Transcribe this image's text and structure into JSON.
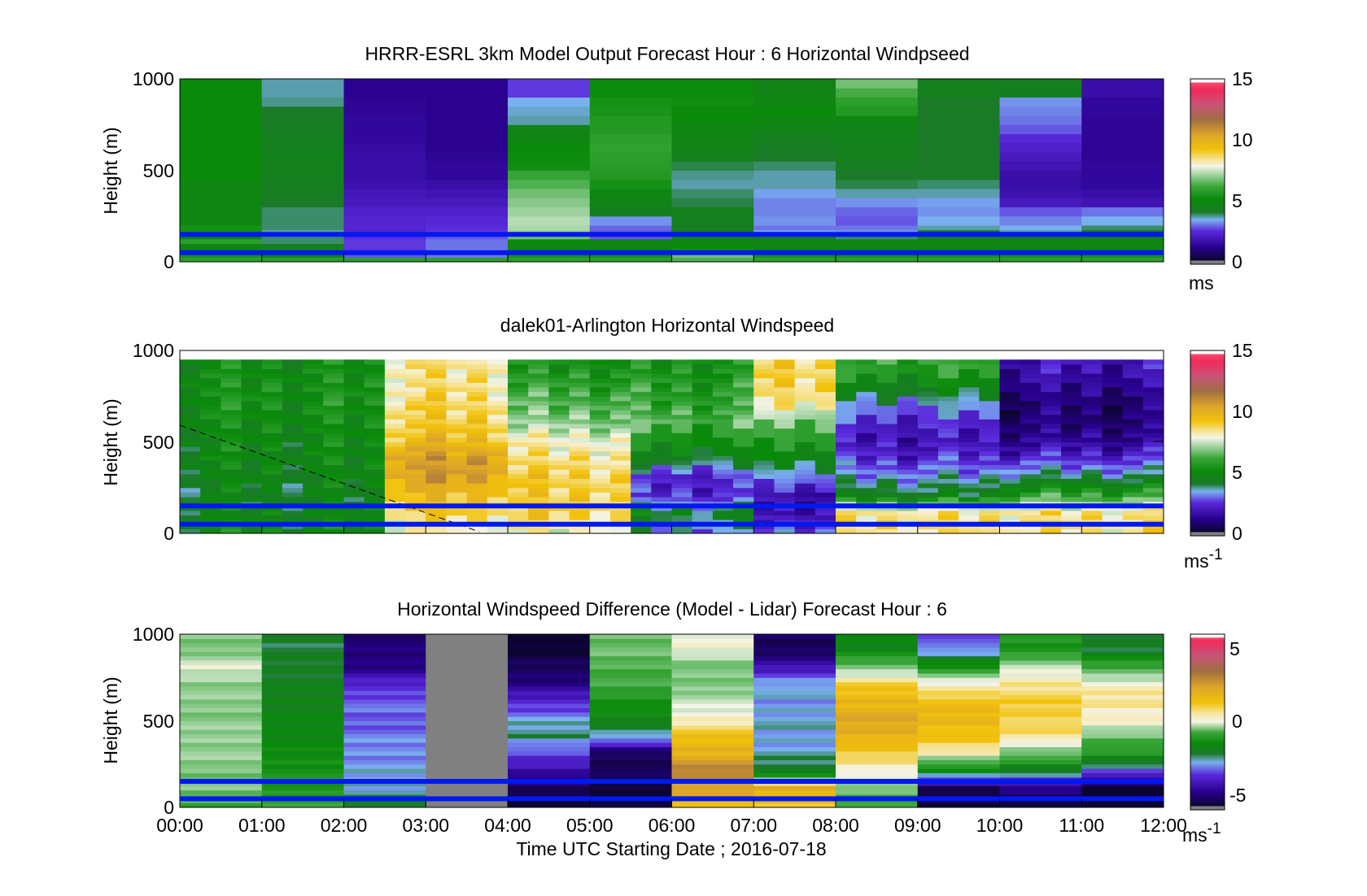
{
  "chart_data": [
    {
      "type": "heatmap",
      "title": "HRRR-ESRL 3km Model Output   Forecast Hour : 6 Horizontal Windpseed",
      "ylabel": "Height (m)",
      "ylim": [
        0,
        1000
      ],
      "yticks": [
        "0",
        "500",
        "1000"
      ],
      "x_range": [
        "00:00",
        "12:00"
      ],
      "grid": false,
      "colorbar": {
        "ticks": [
          "0",
          "5",
          "10",
          "15"
        ],
        "range": [
          0,
          15
        ],
        "unit": "ms"
      },
      "blue_lines_m": [
        50,
        150
      ],
      "heights_m": [
        0,
        25,
        50,
        75,
        100,
        125,
        150,
        175,
        200,
        250,
        300,
        350,
        400,
        450,
        500,
        550,
        600,
        650,
        700,
        750,
        800,
        850,
        900,
        950
      ],
      "columns": [
        {
          "hour": 0,
          "speeds": [
            6,
            5.5,
            5,
            5,
            6,
            5,
            5.5,
            5.5,
            5,
            5,
            5,
            5,
            5,
            5.2,
            5.2,
            5.2,
            5.2,
            5.2,
            5.2,
            5.2,
            5.2,
            5.2,
            5.2,
            5.2
          ]
        },
        {
          "hour": 1,
          "speeds": [
            6,
            5,
            4.5,
            4.5,
            4,
            4,
            3.8,
            4,
            4,
            4,
            4.2,
            4.4,
            4.5,
            4.6,
            4.6,
            4.7,
            4.5,
            4.6,
            4.4,
            4.3,
            4.2,
            3.9,
            3.8,
            3.8
          ]
        },
        {
          "hour": 2,
          "speeds": [
            6,
            3,
            2.8,
            2.8,
            2.8,
            2.7,
            2.5,
            2.5,
            2.5,
            2.4,
            2.2,
            2.1,
            1.9,
            1.8,
            1.8,
            1.8,
            1.7,
            1.6,
            1.6,
            1.6,
            1.5,
            1.5,
            1.4,
            1.4
          ]
        },
        {
          "hour": 3,
          "speeds": [
            6,
            3.2,
            3.2,
            3.2,
            3.2,
            3,
            2.8,
            2.7,
            2.6,
            2.4,
            2.2,
            2.0,
            1.8,
            1.6,
            1.6,
            1.5,
            1.4,
            1.4,
            1.4,
            1.4,
            1.4,
            1.4,
            1.4,
            1.4
          ]
        },
        {
          "hour": 4,
          "speeds": [
            6,
            5.5,
            5,
            5,
            5.2,
            6.8,
            7.2,
            7.3,
            7.4,
            7.2,
            7.0,
            6.8,
            6.5,
            6.2,
            5.4,
            5.3,
            5.2,
            5.0,
            4.8,
            3.8,
            3.7,
            3.6,
            2.8,
            2.8
          ]
        },
        {
          "hour": 5,
          "speeds": [
            6,
            5.5,
            5,
            5,
            5,
            3,
            3,
            3.1,
            3.4,
            4.5,
            4.8,
            5.0,
            5.5,
            5.8,
            5.9,
            6.0,
            6.1,
            6.0,
            5.8,
            5.8,
            5.6,
            5.5,
            5.3,
            5.3
          ]
        },
        {
          "hour": 6,
          "speeds": [
            6.5,
            6.8,
            5.5,
            5.2,
            5.0,
            4.8,
            4.6,
            4.3,
            4.5,
            4.6,
            4.1,
            4.0,
            3.8,
            3.9,
            4.1,
            4.6,
            4.8,
            4.8,
            5.0,
            5.2,
            5.2,
            5.4,
            5.3,
            5.3
          ]
        },
        {
          "hour": 7,
          "speeds": [
            6,
            5.5,
            5,
            5,
            5,
            4.2,
            3.5,
            3.2,
            3.4,
            3.3,
            3.3,
            3.5,
            3.8,
            3.8,
            4.0,
            4.2,
            4.3,
            4.5,
            4.8,
            5.0,
            5.2,
            5.0,
            4.8,
            4.8
          ]
        },
        {
          "hour": 8,
          "speeds": [
            6,
            5.5,
            5,
            5,
            5,
            4,
            3.4,
            3.2,
            3.0,
            3.1,
            3.4,
            3.8,
            4.1,
            4.2,
            4.4,
            4.6,
            4.6,
            4.7,
            4.8,
            5.0,
            5.8,
            6.0,
            6.4,
            6.8
          ]
        },
        {
          "hour": 9,
          "speeds": [
            6,
            5.5,
            5,
            5,
            5,
            4.5,
            4.2,
            3.8,
            3.6,
            3.4,
            3.5,
            3.8,
            4.0,
            4.2,
            4.2,
            4.2,
            4.2,
            4.2,
            4.2,
            4.2,
            4.2,
            4.2,
            4.6,
            4.6
          ]
        },
        {
          "hour": 10,
          "speeds": [
            6,
            5.5,
            5,
            5,
            5,
            4.4,
            3.8,
            3.6,
            3.3,
            3.0,
            2.2,
            1.9,
            1.8,
            1.8,
            2.0,
            2.2,
            2.4,
            2.6,
            3.0,
            3.2,
            3.3,
            3.4,
            4.5,
            4.5
          ]
        },
        {
          "hour": 11,
          "speeds": [
            6,
            5.5,
            5,
            5,
            5,
            4.6,
            4.2,
            4.0,
            3.6,
            3.2,
            2.0,
            1.8,
            1.6,
            1.6,
            1.6,
            1.5,
            1.5,
            1.5,
            1.5,
            1.5,
            1.6,
            1.6,
            1.8,
            1.8
          ]
        }
      ]
    },
    {
      "type": "heatmap",
      "title": "dalek01-Arlington  Horizontal Windspeed",
      "ylabel": "Height (m)",
      "ylim": [
        0,
        1000
      ],
      "yticks": [
        "0",
        "500",
        "1000"
      ],
      "x_range": [
        "00:00",
        "12:00"
      ],
      "grid": false,
      "colorbar": {
        "ticks": [
          "0",
          "5",
          "10",
          "15"
        ],
        "range": [
          0,
          15
        ],
        "unit": "ms",
        "unit_sup": "-1"
      },
      "blue_lines_m": [
        50,
        150
      ],
      "time_hours": [
        0,
        0.25,
        0.5,
        0.75,
        1,
        1.25,
        1.5,
        1.75,
        2,
        2.25,
        2.5,
        2.75,
        3,
        3.25,
        3.5,
        3.75,
        4,
        4.25,
        4.5,
        4.75,
        5,
        5.25,
        5.5,
        5.75,
        6,
        6.25,
        6.5,
        6.75,
        7,
        7.25,
        7.5,
        7.75,
        8,
        8.25,
        8.5,
        8.75,
        9,
        9.25,
        9.5,
        9.75,
        10,
        10.25,
        10.5,
        10.75,
        11,
        11.25,
        11.5,
        11.75
      ],
      "profiles": {
        "heights_m": [
          0,
          100,
          200,
          300,
          400,
          500,
          600,
          700,
          800,
          900
        ],
        "speeds_by_time_block": [
          {
            "hours": "0-2.5",
            "speeds": [
              5,
              4.8,
              4.6,
              4.8,
              5.0,
              5.0,
              5.2,
              5.4,
              5.4,
              5.2
            ]
          },
          {
            "hours": "2.5-4",
            "speeds": [
              8,
              9,
              9.5,
              10.5,
              10.5,
              9.5,
              9.0,
              8.8,
              8.5,
              8.5
            ]
          },
          {
            "hours": "4-5.5",
            "speeds": [
              8,
              9,
              9,
              9,
              8.5,
              8,
              7,
              6.5,
              6.0,
              5.5
            ]
          },
          {
            "hours": "5.5-7",
            "speeds": [
              3.5,
              4.5,
              2.5,
              2.5,
              4.5,
              5.5,
              6.5,
              6.0,
              5.8,
              5.5
            ]
          },
          {
            "hours": "7-8",
            "speeds": [
              3,
              2,
              2,
              3.5,
              5,
              6,
              7,
              8.5,
              9,
              9
            ]
          },
          {
            "hours": "8-10",
            "speeds": [
              8.5,
              8.5,
              4.5,
              3.5,
              2.5,
              2.0,
              2.5,
              3.5,
              5.0,
              6.0
            ]
          },
          {
            "hours": "10-12",
            "speeds": [
              8.5,
              8.5,
              6.0,
              4.0,
              2.5,
              1.5,
              1.0,
              1.0,
              1.5,
              2.0
            ]
          }
        ]
      }
    },
    {
      "type": "heatmap",
      "title": "Horizontal Windspeed Difference (Model - Lidar) Forecast Hour : 6",
      "xlabel": "Time UTC  Starting Date ; 2016-07-18",
      "ylabel": "Height (m)",
      "ylim": [
        0,
        1000
      ],
      "yticks": [
        "0",
        "500",
        "1000"
      ],
      "xticks": [
        "00:00",
        "01:00",
        "02:00",
        "03:00",
        "04:00",
        "05:00",
        "06:00",
        "07:00",
        "08:00",
        "09:00",
        "10:00",
        "11:00",
        "12:00"
      ],
      "grid": false,
      "colorbar": {
        "ticks": [
          "-5",
          "0",
          "5"
        ],
        "range": [
          -6,
          6
        ],
        "unit": "ms",
        "unit_sup": "-1"
      },
      "blue_lines_m": [
        50,
        150
      ],
      "heights_m": [
        0,
        100,
        200,
        300,
        400,
        500,
        600,
        700,
        800,
        900
      ],
      "columns": [
        {
          "hour": 0,
          "diffs": [
            -1,
            -0.5,
            -0.5,
            -0.3,
            -0.3,
            -0.4,
            -0.4,
            -0.3,
            0.2,
            -0.5
          ]
        },
        {
          "hour": 1,
          "diffs": [
            -1,
            -1.5,
            -1.5,
            -1.8,
            -2.0,
            -2.1,
            -2.2,
            -2.4,
            -2.5,
            -2.6
          ]
        },
        {
          "hour": 2,
          "diffs": [
            -2.5,
            -3.0,
            -3.2,
            -3.3,
            -3.4,
            -3.6,
            -3.5,
            -4.0,
            -5.0,
            -5.2
          ]
        },
        {
          "hour": 4,
          "diffs": [
            -6,
            -5.5,
            -4.5,
            -3.8,
            -2.8,
            -3.2,
            -4.0,
            -5.0,
            -5.5,
            -6.0
          ]
        },
        {
          "hour": 5,
          "diffs": [
            -6,
            -6,
            -5.5,
            -5.5,
            -3.0,
            -2.0,
            -1.5,
            -1.0,
            -0.8,
            -0.6
          ]
        },
        {
          "hour": 6,
          "diffs": [
            1.5,
            2.5,
            3.0,
            2.0,
            1.5,
            0.5,
            0,
            -0.5,
            -0.5,
            0.3
          ]
        },
        {
          "hour": 7,
          "diffs": [
            1.5,
            2.0,
            -2.5,
            -3.0,
            -3.2,
            -3.0,
            -3.3,
            -3.0,
            -4.5,
            -5.5
          ]
        },
        {
          "hour": 8,
          "diffs": [
            -1.0,
            -0.5,
            0.5,
            1.2,
            2.0,
            2.2,
            1.8,
            1.2,
            -0.5,
            -2.0
          ]
        },
        {
          "hour": 9,
          "diffs": [
            -6,
            -5.5,
            -2.0,
            0.5,
            1.5,
            1.8,
            1.5,
            0.5,
            -1.5,
            -3.5
          ]
        },
        {
          "hour": 10,
          "diffs": [
            -6,
            -5.0,
            -2.5,
            -0.5,
            0.8,
            1.2,
            1.2,
            0.8,
            0,
            -1.5
          ]
        },
        {
          "hour": 11,
          "diffs": [
            -6,
            -6,
            -3.5,
            -1.5,
            -0.5,
            0.5,
            0.8,
            0.5,
            -1.0,
            -2.5
          ]
        }
      ],
      "missing_column_hour": 3
    }
  ]
}
